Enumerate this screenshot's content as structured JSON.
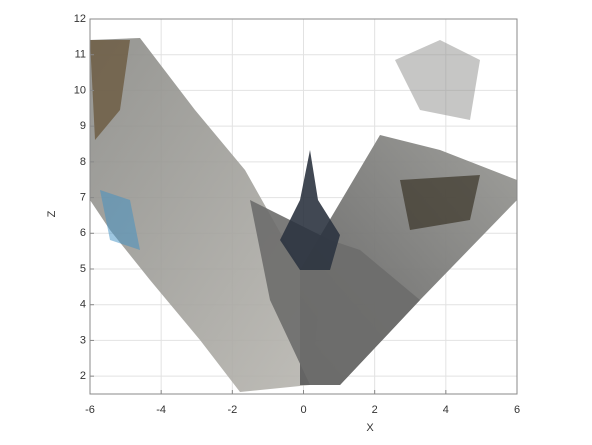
{
  "chart_data": {
    "type": "pointcloud",
    "x_label": "X",
    "y_label": "Z",
    "xlim": [
      -6,
      6
    ],
    "xticks": [
      -6,
      -4,
      -2,
      0,
      2,
      4,
      6
    ],
    "ylim": [
      1.5,
      12
    ],
    "yticks": [
      2,
      3,
      4,
      5,
      6,
      7,
      8,
      9,
      10,
      11,
      12
    ],
    "grid": true
  }
}
